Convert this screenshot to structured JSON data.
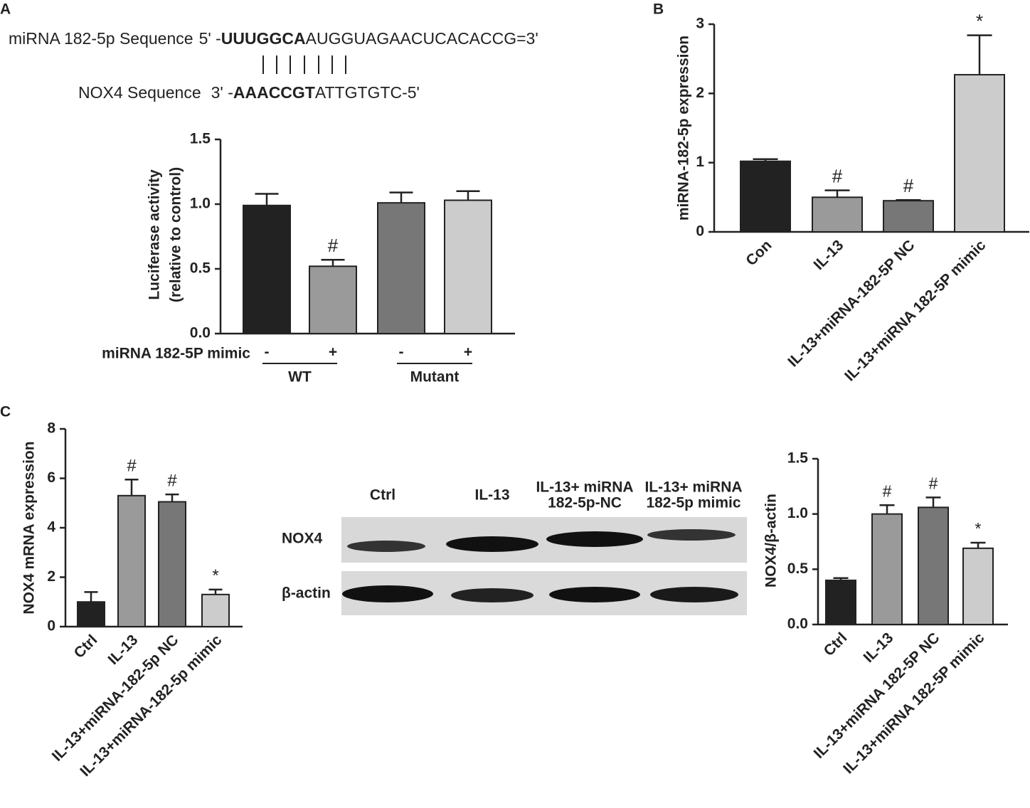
{
  "panels": [
    "A",
    "B",
    "C"
  ],
  "sequence": {
    "mirna_label": "miRNA 182-5p Sequence",
    "mirna_end": "5' -",
    "mirna_bold": "UUUGGCA",
    "mirna_rest": "AUGGUAGAACUCACACCG=3'",
    "nox4_label": "NOX4 Sequence",
    "nox4_end": "3' -",
    "nox4_bold": "AAACCGT",
    "nox4_rest": "ATTGTGTC-5'"
  },
  "blot": {
    "lanes": [
      [
        "Ctrl"
      ],
      [
        "IL-13"
      ],
      [
        "IL-13+ miRNA",
        "182-5p-NC"
      ],
      [
        "IL-13+ miRNA",
        "182-5p mimic"
      ]
    ],
    "rows": [
      "NOX4",
      "β-actin"
    ]
  },
  "chart_data": [
    {
      "type": "bar",
      "ylabel": [
        "Luciferase activity",
        "(relative to control)"
      ],
      "xlabel": "miRNA 182-5P mimic",
      "categories": [
        "-",
        "+",
        "-",
        "+"
      ],
      "groups": [
        "WT",
        "Mutant"
      ],
      "values": [
        0.99,
        0.52,
        1.01,
        1.03
      ],
      "errors": [
        0.09,
        0.05,
        0.08,
        0.07
      ],
      "markers": [
        null,
        "#",
        null,
        null
      ],
      "colors": [
        "#222222",
        "#9a9a9a",
        "#777777",
        "#cccccc"
      ],
      "ylim": [
        0,
        1.5
      ],
      "yticks": [
        {
          "value": 0,
          "label": "0.0"
        },
        {
          "value": 0.5,
          "label": "0.5"
        },
        {
          "value": 1,
          "label": "1.0"
        },
        {
          "value": 1.5,
          "label": "1.5"
        }
      ]
    },
    {
      "type": "bar",
      "ylabel": [
        "miRNA-182-5p expression"
      ],
      "categories": [
        "Con",
        "IL-13",
        "IL-13+miRNA-182-5P NC",
        "IL-13+miRNA 182-5P mimic"
      ],
      "values": [
        1.02,
        0.5,
        0.45,
        2.27
      ],
      "errors": [
        0.03,
        0.1,
        0.01,
        0.57
      ],
      "markers": [
        null,
        "#",
        "#",
        "*"
      ],
      "colors": [
        "#222222",
        "#9a9a9a",
        "#777777",
        "#cccccc"
      ],
      "ylim": [
        0,
        3
      ],
      "yticks": [
        0,
        1,
        2,
        3
      ]
    },
    {
      "type": "bar",
      "ylabel": [
        "NOX4 mRNA expression"
      ],
      "categories": [
        "Ctrl",
        "IL-13",
        "IL-13+miRNA-182-5p NC",
        "IL-13+miRNA-182-5p mimic"
      ],
      "values": [
        1.0,
        5.3,
        5.05,
        1.3
      ],
      "errors": [
        0.4,
        0.65,
        0.3,
        0.2
      ],
      "markers": [
        null,
        "#",
        "#",
        "*"
      ],
      "colors": [
        "#222222",
        "#9a9a9a",
        "#777777",
        "#cccccc"
      ],
      "ylim": [
        0,
        8
      ],
      "yticks": [
        0,
        2,
        4,
        6,
        8
      ]
    },
    {
      "type": "bar",
      "ylabel": [
        "NOX4/β-actin"
      ],
      "categories": [
        "Ctrl",
        "IL-13",
        "IL-13+miRNA 182-5P NC",
        "IL-13+miRNA 182-5P mimic"
      ],
      "values": [
        0.4,
        1.0,
        1.06,
        0.69
      ],
      "errors": [
        0.02,
        0.08,
        0.09,
        0.05
      ],
      "markers": [
        null,
        "#",
        "#",
        "*"
      ],
      "colors": [
        "#222222",
        "#9a9a9a",
        "#777777",
        "#cccccc"
      ],
      "ylim": [
        0,
        1.5
      ],
      "yticks": [
        {
          "value": 0,
          "label": "0.0"
        },
        {
          "value": 0.5,
          "label": "0.5"
        },
        {
          "value": 1,
          "label": "1.0"
        },
        {
          "value": 1.5,
          "label": "1.5"
        }
      ]
    }
  ]
}
